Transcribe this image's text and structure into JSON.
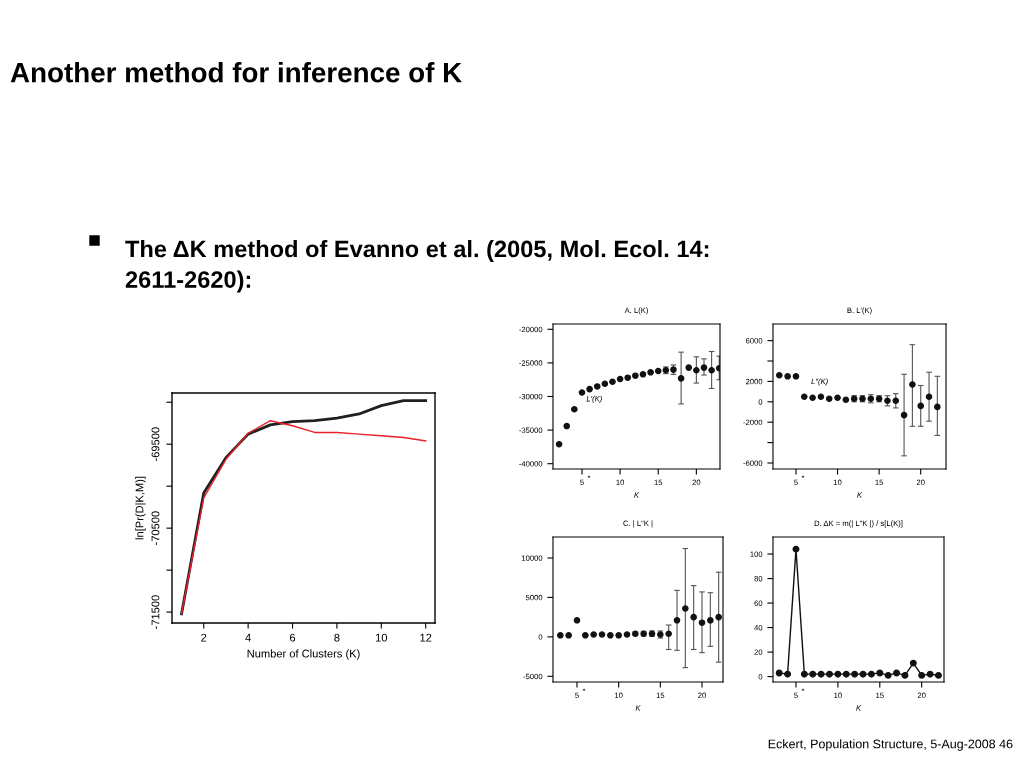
{
  "chart_data": [
    {
      "type": "line",
      "xlabel": "Number of Clusters (K)",
      "ylabel": "ln[Pr(D|K,M)]",
      "x": [
        1,
        2,
        3,
        4,
        5,
        6,
        7,
        8,
        9,
        10,
        11,
        12
      ],
      "series": [
        {
          "color": "#202020",
          "values": [
            -71520,
            -70080,
            -69660,
            -69380,
            -69270,
            -69230,
            -69220,
            -69190,
            -69140,
            -69040,
            -68980,
            -68980
          ]
        },
        {
          "color": "#e8202a",
          "values": [
            -71520,
            -70140,
            -69680,
            -69370,
            -69220,
            -69280,
            -69360,
            -69360,
            -69380,
            -69400,
            -69420,
            -69460
          ]
        }
      ],
      "xlim": [
        0.57,
        12.42
      ],
      "xticks": [
        2,
        4,
        6,
        8,
        10,
        12
      ],
      "ylim": [
        -71630,
        -68890
      ],
      "yticks": [
        {
          "value": -69000,
          "label": null
        },
        -69500,
        {
          "value": -70000,
          "label": null
        },
        -70500,
        {
          "value": -71000,
          "label": null
        },
        -71500
      ],
      "marker": "none",
      "line_style": "solid",
      "annotations": [
        "Another method for inference of K",
        "The ΔK method of Evanno et al. (2005, Mol. Ecol. 14:\n2611-2620):",
        "Eckert, Population Structure, 5-Aug-2008 46"
      ]
    },
    {
      "type": "scatter",
      "title": "A. L(K)",
      "xlabel": "K",
      "x": [
        2,
        3,
        4,
        5,
        6,
        7,
        8,
        9,
        10,
        11,
        12,
        13,
        14,
        15,
        16,
        17,
        18,
        19,
        20,
        21,
        22,
        23
      ],
      "values": [
        -37100,
        -34400,
        -31900,
        -29400,
        -28900,
        -28500,
        -28100,
        -27800,
        -27400,
        -27200,
        -26900,
        -26700,
        -26400,
        -26200,
        -26100,
        -26000,
        -27300,
        -25700,
        -26100,
        -25700,
        -26100,
        -25800
      ],
      "errors": [
        null,
        null,
        null,
        null,
        null,
        null,
        null,
        null,
        null,
        null,
        null,
        null,
        null,
        null,
        500,
        700,
        [
          -31100,
          -23400
        ],
        null,
        [
          -28000,
          -24100
        ],
        [
          -26800,
          -24400
        ],
        [
          -28800,
          -23300
        ],
        [
          -27500,
          -24000
        ]
      ],
      "color": "#111111",
      "marker": "circle",
      "xlim": [
        1.2,
        23.1
      ],
      "xticks": [
        5,
        10,
        15,
        20
      ],
      "ylim": [
        -40790,
        -19210
      ],
      "yticks": [
        -20000,
        -25000,
        -30000,
        -35000,
        -40000
      ],
      "annotations": [
        "L′(K)",
        "*"
      ]
    },
    {
      "type": "scatter",
      "title": "B. L′(K)",
      "xlabel": "K",
      "x": [
        3,
        4,
        5,
        6,
        7,
        8,
        9,
        10,
        11,
        12,
        13,
        14,
        15,
        16,
        17,
        18,
        19,
        20,
        21,
        22
      ],
      "values": [
        2600,
        2500,
        2500,
        500,
        400,
        500,
        300,
        400,
        200,
        300,
        300,
        300,
        300,
        100,
        100,
        -1300,
        1700,
        -400,
        500,
        -500
      ],
      "errors": [
        null,
        null,
        null,
        null,
        null,
        null,
        null,
        null,
        null,
        300,
        300,
        400,
        300,
        500,
        700,
        [
          -5300,
          2700
        ],
        [
          -2400,
          5600
        ],
        [
          -2400,
          1600
        ],
        [
          -1900,
          2900
        ],
        [
          -3300,
          2500
        ]
      ],
      "color": "#111111",
      "marker": "circle",
      "xlim": [
        2.24,
        23.04
      ],
      "xticks": [
        5,
        10,
        15,
        20
      ],
      "ylim": [
        -6590,
        7630
      ],
      "yticks": [
        6000,
        {
          "value": 4000,
          "label": null
        },
        2000,
        0,
        -2000,
        {
          "value": -4000,
          "label": null
        },
        -6000
      ],
      "annotations": [
        "L″(K)",
        "*"
      ]
    },
    {
      "type": "scatter",
      "title": "C. | L″K |",
      "xlabel": "K",
      "x": [
        3,
        4,
        5,
        6,
        7,
        8,
        9,
        10,
        11,
        12,
        13,
        14,
        15,
        16,
        17,
        18,
        19,
        20,
        21,
        22
      ],
      "values": [
        200,
        200,
        2100,
        200,
        300,
        300,
        200,
        200,
        300,
        400,
        400,
        400,
        300,
        400,
        2100,
        3600,
        2500,
        1800,
        2100,
        2500
      ],
      "errors": [
        null,
        null,
        null,
        null,
        null,
        null,
        null,
        null,
        null,
        250,
        300,
        350,
        450,
        [
          -1600,
          1500
        ],
        [
          -1700,
          5900
        ],
        [
          -3900,
          11200
        ],
        [
          -1600,
          6500
        ],
        [
          -2000,
          5700
        ],
        [
          -1200,
          5600
        ],
        [
          -3200,
          8200
        ]
      ],
      "color": "#111111",
      "marker": "circle",
      "xlim": [
        2.12,
        22.52
      ],
      "xticks": [
        5,
        10,
        15,
        20
      ],
      "ylim": [
        -5720,
        12660
      ],
      "yticks": [
        10000,
        5000,
        0,
        -5000
      ],
      "annotations": [
        "*"
      ]
    },
    {
      "type": "line",
      "title": "D. ΔK = m(| L″K |) / s[L(K)]",
      "xlabel": "K",
      "x": [
        3,
        4,
        5,
        6,
        7,
        8,
        9,
        10,
        11,
        12,
        13,
        14,
        15,
        16,
        17,
        18,
        19,
        20,
        21,
        22
      ],
      "values": [
        3,
        2,
        104,
        2,
        2,
        2,
        2,
        2,
        2,
        2,
        2,
        2,
        3,
        1,
        3,
        1,
        11,
        1,
        2,
        1
      ],
      "color": "#111111",
      "marker": "circle",
      "line_style": "solid",
      "xlim": [
        2.26,
        22.66
      ],
      "xticks": [
        5,
        10,
        15,
        20
      ],
      "ylim": [
        -4.4,
        113.9
      ],
      "yticks": [
        0,
        20,
        40,
        60,
        80,
        100
      ],
      "annotations": [
        "*"
      ]
    }
  ]
}
